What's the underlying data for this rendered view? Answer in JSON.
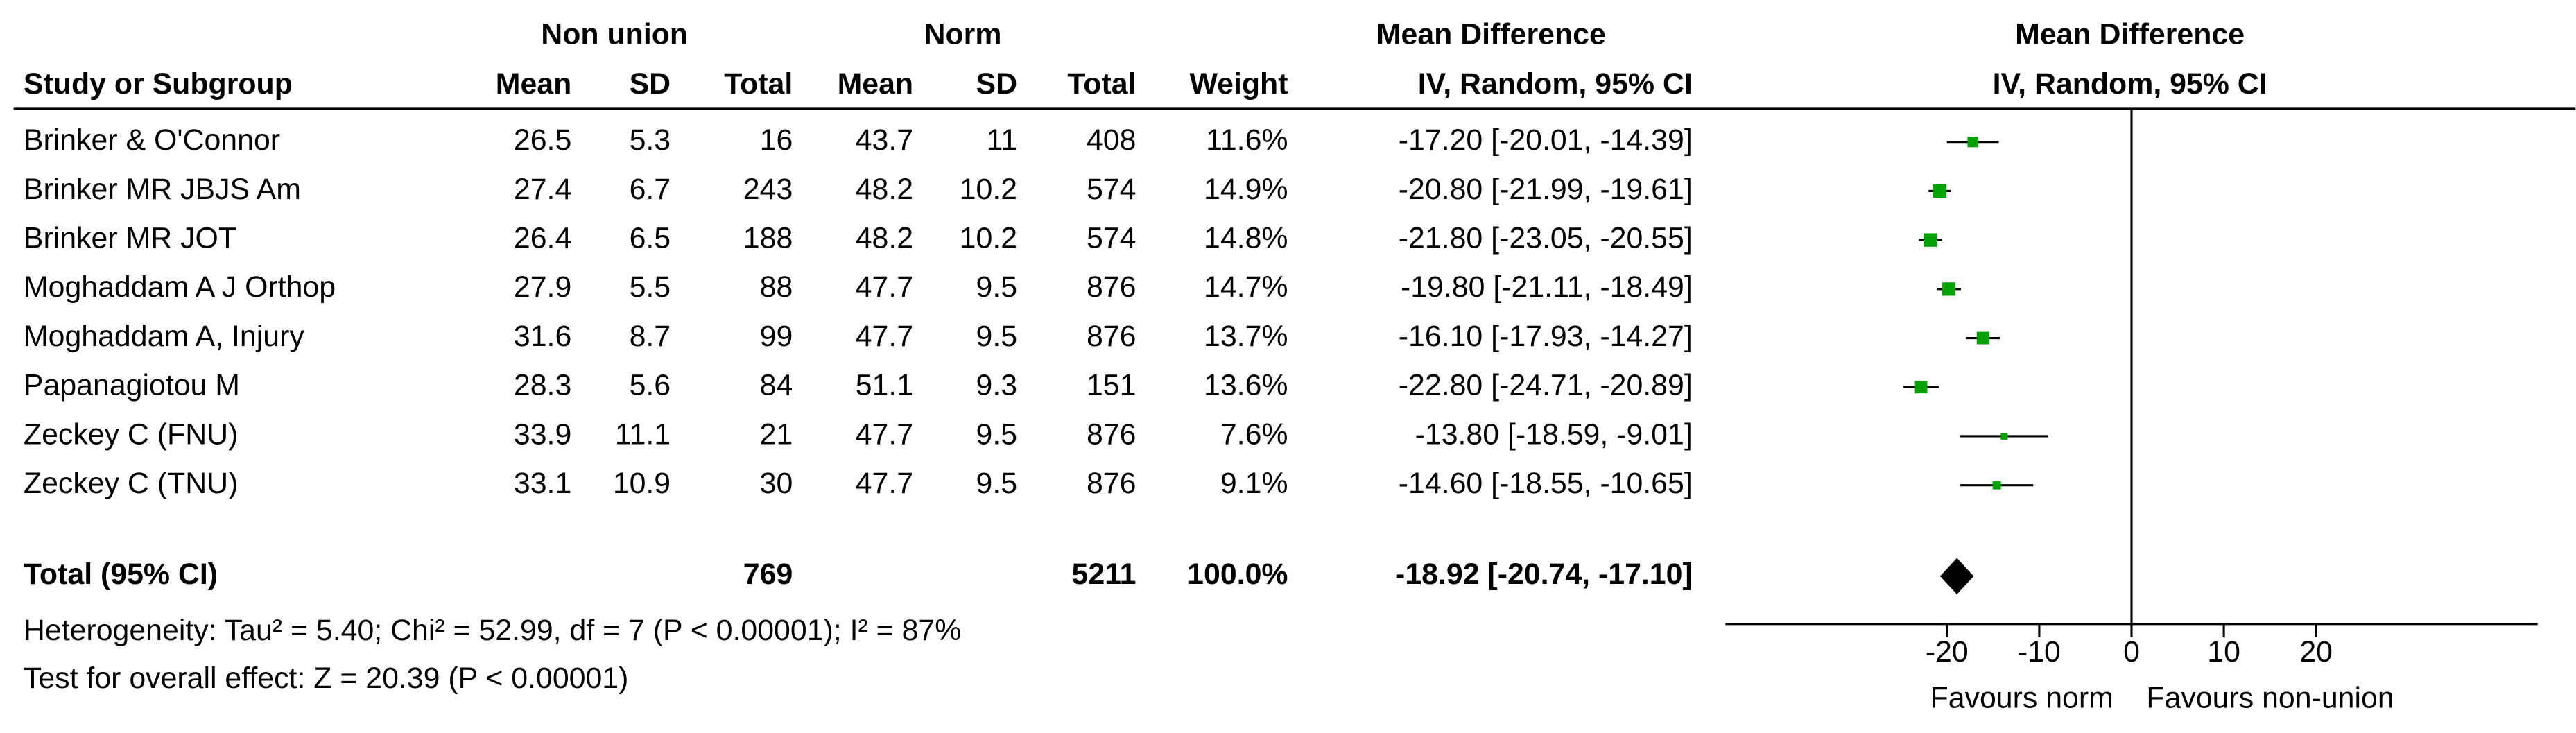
{
  "chart_data": {
    "type": "forest",
    "group_headers": [
      "Non union",
      "Norm",
      "Mean Difference",
      "Mean Difference"
    ],
    "columns": [
      "Study or Subgroup",
      "Mean",
      "SD",
      "Total",
      "Mean",
      "SD",
      "Total",
      "Weight",
      "IV, Random, 95% CI",
      "IV, Random, 95% CI"
    ],
    "studies": [
      {
        "name": "Brinker & O'Connor",
        "mean1": 26.5,
        "sd1": 5.3,
        "n1": 16,
        "mean2": 43.7,
        "sd2": 11,
        "n2": 408,
        "weight": 11.6,
        "weight_label": "11.6%",
        "md": -17.2,
        "lo": -20.01,
        "hi": -14.39,
        "ci_label": "-17.20 [-20.01, -14.39]"
      },
      {
        "name": "Brinker MR JBJS Am",
        "mean1": 27.4,
        "sd1": 6.7,
        "n1": 243,
        "mean2": 48.2,
        "sd2": 10.2,
        "n2": 574,
        "weight": 14.9,
        "weight_label": "14.9%",
        "md": -20.8,
        "lo": -21.99,
        "hi": -19.61,
        "ci_label": "-20.80 [-21.99, -19.61]"
      },
      {
        "name": "Brinker MR JOT",
        "mean1": 26.4,
        "sd1": 6.5,
        "n1": 188,
        "mean2": 48.2,
        "sd2": 10.2,
        "n2": 574,
        "weight": 14.8,
        "weight_label": "14.8%",
        "md": -21.8,
        "lo": -23.05,
        "hi": -20.55,
        "ci_label": "-21.80 [-23.05, -20.55]"
      },
      {
        "name": "Moghaddam A J Orthop",
        "mean1": 27.9,
        "sd1": 5.5,
        "n1": 88,
        "mean2": 47.7,
        "sd2": 9.5,
        "n2": 876,
        "weight": 14.7,
        "weight_label": "14.7%",
        "md": -19.8,
        "lo": -21.11,
        "hi": -18.49,
        "ci_label": "-19.80 [-21.11, -18.49]"
      },
      {
        "name": "Moghaddam A, Injury",
        "mean1": 31.6,
        "sd1": 8.7,
        "n1": 99,
        "mean2": 47.7,
        "sd2": 9.5,
        "n2": 876,
        "weight": 13.7,
        "weight_label": "13.7%",
        "md": -16.1,
        "lo": -17.93,
        "hi": -14.27,
        "ci_label": "-16.10 [-17.93, -14.27]"
      },
      {
        "name": "Papanagiotou M",
        "mean1": 28.3,
        "sd1": 5.6,
        "n1": 84,
        "mean2": 51.1,
        "sd2": 9.3,
        "n2": 151,
        "weight": 13.6,
        "weight_label": "13.6%",
        "md": -22.8,
        "lo": -24.71,
        "hi": -20.89,
        "ci_label": "-22.80 [-24.71, -20.89]"
      },
      {
        "name": "Zeckey C (FNU)",
        "mean1": 33.9,
        "sd1": 11.1,
        "n1": 21,
        "mean2": 47.7,
        "sd2": 9.5,
        "n2": 876,
        "weight": 7.6,
        "weight_label": "7.6%",
        "md": -13.8,
        "lo": -18.59,
        "hi": -9.01,
        "ci_label": "-13.80 [-18.59, -9.01]"
      },
      {
        "name": "Zeckey C (TNU)",
        "mean1": 33.1,
        "sd1": 10.9,
        "n1": 30,
        "mean2": 47.7,
        "sd2": 9.5,
        "n2": 876,
        "weight": 9.1,
        "weight_label": "9.1%",
        "md": -14.6,
        "lo": -18.55,
        "hi": -10.65,
        "ci_label": "-14.60 [-18.55, -10.65]"
      }
    ],
    "total": {
      "name": "Total (95% CI)",
      "n1": 769,
      "n2": 5211,
      "weight_label": "100.0%",
      "md": -18.92,
      "lo": -20.74,
      "hi": -17.1,
      "ci_label": "-18.92 [-20.74, -17.10]"
    },
    "heterogeneity": "Heterogeneity: Tau² = 5.40; Chi² = 52.99, df = 7 (P < 0.00001); I² = 87%",
    "overall_effect": "Test for overall effect: Z = 20.39 (P < 0.00001)",
    "xlim": [
      -44,
      44
    ],
    "xticks": [
      -20,
      -10,
      0,
      10,
      20
    ],
    "favours_left": "Favours norm",
    "favours_right": "Favours non-union",
    "color": "#00a000"
  }
}
